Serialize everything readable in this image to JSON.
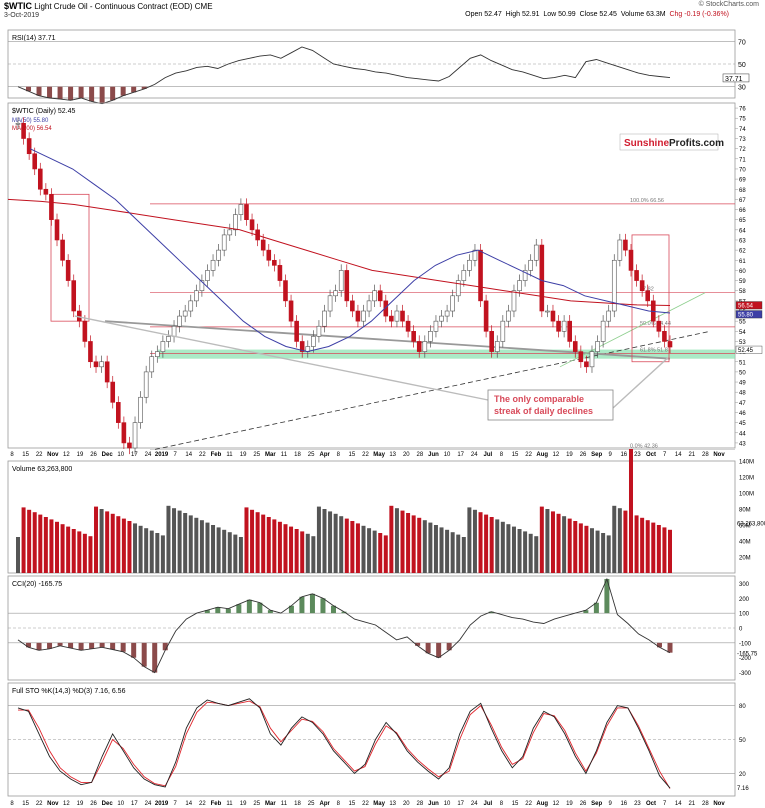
{
  "header": {
    "symbol": "$WTIC",
    "description": "Light Crude Oil - Continuous Contract (EOD)",
    "exchange": "CME",
    "date": "3-Oct-2019",
    "copyright": "© StockCharts.com",
    "open": "Open 52.47",
    "high": "High 52.91",
    "low": "Low 50.99",
    "close": "Close 52.45",
    "volume": "Volume 63.3M",
    "change": "Chg -0.19 (-0.36%)"
  },
  "colors": {
    "up": "#555555",
    "down": "#c1121f",
    "ma50": "#3d3fa6",
    "ma200": "#c1121f",
    "zone": "#8fe3b3",
    "pos_fill": "#5c8a5c",
    "neg_fill": "#8b4a4a",
    "stoch_d": "#e0262d",
    "axis": "#888888"
  },
  "x_axis": {
    "ticks": [
      "8",
      "15",
      "22",
      "Nov",
      "12",
      "19",
      "26",
      "Dec",
      "10",
      "17",
      "24",
      "2019",
      "7",
      "14",
      "22",
      "Feb",
      "11",
      "19",
      "25",
      "Mar",
      "11",
      "18",
      "25",
      "Apr",
      "8",
      "15",
      "22",
      "May",
      "13",
      "20",
      "28",
      "Jun",
      "10",
      "17",
      "24",
      "Jul",
      "8",
      "15",
      "22",
      "Aug",
      "12",
      "19",
      "26",
      "Sep",
      "9",
      "16",
      "23",
      "Oct",
      "7",
      "14",
      "21",
      "28",
      "Nov"
    ]
  },
  "panels": {
    "rsi": {
      "label": "RSI(14) 37.71",
      "ticks": [
        "70",
        "50",
        "30"
      ],
      "value": "37.71",
      "values": [
        30,
        26,
        22,
        20,
        19,
        18,
        20,
        17,
        15,
        18,
        22,
        25,
        28,
        32,
        38,
        42,
        44,
        47,
        48,
        46,
        50,
        53,
        55,
        57,
        58,
        55,
        60,
        65,
        62,
        56,
        50,
        48,
        46,
        45,
        43,
        42,
        40,
        38,
        37,
        36,
        35,
        39,
        47,
        55,
        58,
        53,
        49,
        45,
        43,
        40,
        37,
        38,
        40,
        38,
        52,
        54,
        51,
        48,
        45,
        42,
        40,
        39,
        38
      ]
    },
    "price": {
      "label": "$WTIC (Daily) 52.45",
      "ma50_label": "MA(50) 55.80",
      "ma200_label": "MA(200) 56.54",
      "ticks": [
        "76",
        "75",
        "74",
        "73",
        "72",
        "71",
        "70",
        "69",
        "68",
        "67",
        "66",
        "65",
        "64",
        "63",
        "62",
        "61",
        "60",
        "59",
        "58",
        "57",
        "56",
        "55",
        "54",
        "53",
        "52",
        "51",
        "50",
        "49",
        "48",
        "47",
        "46",
        "45",
        "44",
        "43"
      ],
      "fib_labels": [
        "100.0% 66.56",
        "57.82",
        "50.0% 54.44",
        "61.8% 51.8",
        "0.0% 42.36"
      ],
      "right_labels": [
        "56.54",
        "55.80",
        "52.45"
      ],
      "annotation_lines": [
        "The only comparable",
        "streak of daily declines"
      ],
      "logo_part1": "Sunshine",
      "logo_part2": "Profits.com"
    },
    "volume": {
      "label": "Volume 63,263,800",
      "ticks": [
        "140M",
        "120M",
        "100M",
        "80M",
        "60M",
        "40M",
        "20M"
      ],
      "value": "63,263,800"
    },
    "cci": {
      "label": "CCI(20) -165.75",
      "ticks": [
        "300",
        "200",
        "100",
        "0",
        "-100",
        "-200",
        "-300"
      ],
      "value": "-165.75",
      "values": [
        -80,
        -130,
        -150,
        -140,
        -120,
        -135,
        -150,
        -140,
        -130,
        -145,
        -160,
        -200,
        -260,
        -300,
        -150,
        -20,
        60,
        100,
        120,
        140,
        130,
        160,
        190,
        170,
        120,
        100,
        150,
        210,
        230,
        200,
        150,
        110,
        60,
        40,
        20,
        -30,
        -80,
        -60,
        -120,
        -170,
        -200,
        -150,
        -80,
        20,
        80,
        110,
        90,
        70,
        60,
        40,
        30,
        60,
        80,
        100,
        120,
        170,
        330,
        90,
        30,
        -40,
        -80,
        -130,
        -166
      ]
    },
    "stoch": {
      "label": "Full STO %K(14,3) %D(3) 7.16, 6.56",
      "ticks": [
        "80",
        "50",
        "20"
      ],
      "k_value": "7.16",
      "d_value": "6.56",
      "k_values": [
        78,
        75,
        55,
        35,
        22,
        15,
        10,
        12,
        35,
        55,
        40,
        25,
        15,
        10,
        8,
        30,
        60,
        78,
        85,
        82,
        80,
        83,
        86,
        78,
        55,
        45,
        60,
        70,
        65,
        55,
        40,
        30,
        20,
        28,
        50,
        65,
        55,
        40,
        30,
        22,
        15,
        25,
        55,
        75,
        82,
        60,
        40,
        25,
        35,
        60,
        75,
        70,
        55,
        35,
        20,
        40,
        65,
        80,
        78,
        60,
        40,
        18,
        7
      ],
      "d_values": [
        76,
        76,
        60,
        40,
        25,
        17,
        12,
        12,
        30,
        50,
        42,
        28,
        17,
        11,
        9,
        26,
        55,
        74,
        83,
        82,
        80,
        82,
        84,
        79,
        60,
        48,
        58,
        68,
        66,
        57,
        42,
        32,
        22,
        26,
        46,
        62,
        56,
        42,
        32,
        24,
        17,
        22,
        50,
        72,
        80,
        63,
        43,
        28,
        33,
        56,
        73,
        71,
        58,
        38,
        22,
        38,
        62,
        78,
        78,
        62,
        42,
        22,
        6.56
      ]
    }
  },
  "chart_data": {
    "type": "line",
    "title": "$WTIC Light Crude Oil - Continuous Contract (EOD)",
    "period": "Daily",
    "x_range": [
      "2018-10",
      "2019-11"
    ],
    "price_close_approx": [
      74.5,
      73,
      71.5,
      70,
      68,
      67.5,
      65,
      63,
      61,
      59,
      56,
      55,
      53,
      51,
      50.5,
      51,
      49,
      47,
      45,
      43,
      42.5,
      45,
      47.5,
      50,
      51.5,
      52,
      53,
      53.5,
      54.5,
      55.5,
      56,
      57,
      58,
      59,
      60,
      61,
      62,
      63.5,
      64,
      65.5,
      66.5,
      65,
      64,
      63,
      62,
      61,
      60.5,
      59,
      57,
      55,
      53,
      52,
      52.5,
      53.5,
      54.5,
      56,
      57.5,
      58,
      60,
      57,
      56,
      55,
      56,
      57,
      58,
      57,
      55.5,
      55,
      56,
      55,
      54,
      53,
      52,
      53,
      54,
      55,
      55.5,
      56,
      57.5,
      59,
      60,
      61,
      62,
      57,
      54,
      52,
      53,
      55,
      56,
      58,
      59,
      60,
      61,
      62.5,
      56,
      56,
      55,
      54,
      55,
      53,
      52,
      51,
      50.5,
      52,
      53,
      55,
      56,
      61,
      63,
      62,
      60,
      59,
      58,
      57,
      55,
      54,
      53,
      52.45
    ],
    "ma50_approx": [
      72,
      71,
      70,
      68.5,
      67,
      65,
      63,
      61,
      59,
      57,
      55,
      53.5,
      52.5,
      52,
      52.5,
      53.5,
      55,
      57,
      59,
      60.5,
      61.5,
      62,
      61,
      60,
      59,
      58.5,
      57.5,
      57,
      56.5,
      56,
      55.8
    ],
    "ma200_approx": [
      67,
      66.8,
      66.5,
      66,
      65.5,
      65,
      64.5,
      64,
      63,
      62,
      61,
      60,
      59.5,
      59,
      58.5,
      58,
      57.5,
      57,
      56.8,
      56.6,
      56.54
    ],
    "fib_levels": [
      66.56,
      57.82,
      54.44,
      51.8,
      42.36
    ],
    "support_zone": [
      51.3,
      52.2
    ],
    "last_close": 52.45,
    "ma50_last": 55.8,
    "ma200_last": 56.54,
    "volume_last": 63263800,
    "rsi_last": 37.71,
    "cci_last": -165.75,
    "stoch_k_last": 7.16,
    "stoch_d_last": 6.56,
    "price_range": [
      43,
      76
    ],
    "volume_range": [
      0,
      140000000
    ]
  }
}
